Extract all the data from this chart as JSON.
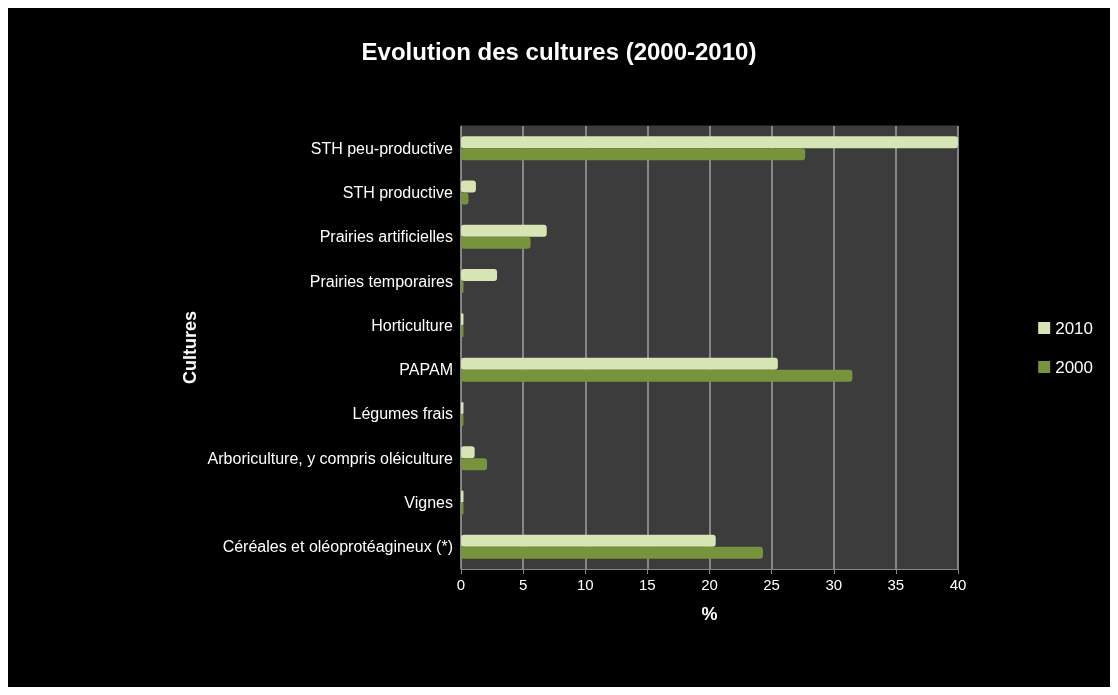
{
  "chart_data": {
    "type": "bar",
    "orientation": "horizontal",
    "title": "Evolution des cultures (2000-2010)",
    "xlabel": "%",
    "ylabel": "Cultures",
    "categories": [
      "STH peu-productive",
      "STH productive",
      "Prairies artificielles",
      "Prairies temporaires",
      "Horticulture",
      "PAPAM",
      "Légumes frais",
      "Arboriculture, y compris oléiculture",
      "Vignes",
      "Céréales et oléoprotéagineux (*)"
    ],
    "series": [
      {
        "name": "2010",
        "color": "#d7e4b4",
        "values": [
          40,
          1.2,
          6.9,
          2.9,
          0.2,
          25.5,
          0.2,
          1.1,
          0.2,
          20.5
        ]
      },
      {
        "name": "2000",
        "color": "#77933c",
        "values": [
          27.7,
          0.6,
          5.6,
          0.2,
          0.2,
          31.5,
          0.2,
          2.1,
          0.2,
          24.3
        ]
      }
    ],
    "xlim": [
      0,
      40
    ],
    "xticks": [
      0,
      5,
      10,
      15,
      20,
      25,
      30,
      35,
      40
    ],
    "grid": "x",
    "legend": "right"
  }
}
